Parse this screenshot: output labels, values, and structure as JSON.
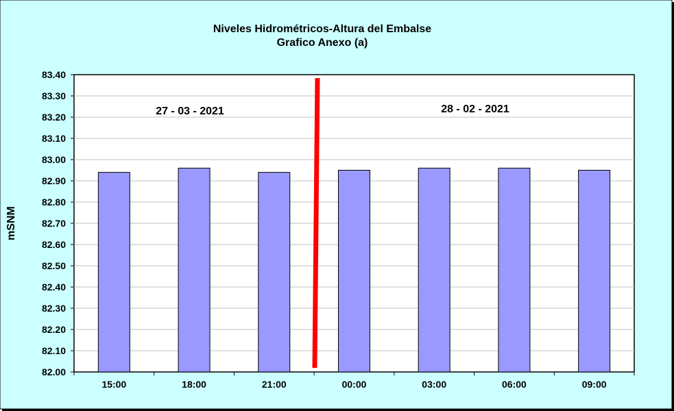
{
  "chart_data": {
    "type": "bar",
    "title": "Niveles Hidrométricos-Altura del Embalse",
    "subtitle": "Grafico Anexo (a)",
    "xlabel": "",
    "ylabel": "mSNM",
    "categories": [
      "15:00",
      "18:00",
      "21:00",
      "00:00",
      "03:00",
      "06:00",
      "09:00"
    ],
    "values": [
      82.94,
      82.96,
      82.94,
      82.95,
      82.96,
      82.96,
      82.95
    ],
    "ylim": [
      82.0,
      83.4
    ],
    "ytick_step": 0.1,
    "grid": true,
    "annotations": [
      "27 - 03 - 2021",
      "28 - 02 - 2021"
    ],
    "divider": "red line between 21:00 and 00:00",
    "colors": {
      "background": "#ccffff",
      "plot": "#ffffff",
      "bar": "#9999ff",
      "divider": "#ff0000",
      "grid": "#c0c0c0"
    }
  }
}
